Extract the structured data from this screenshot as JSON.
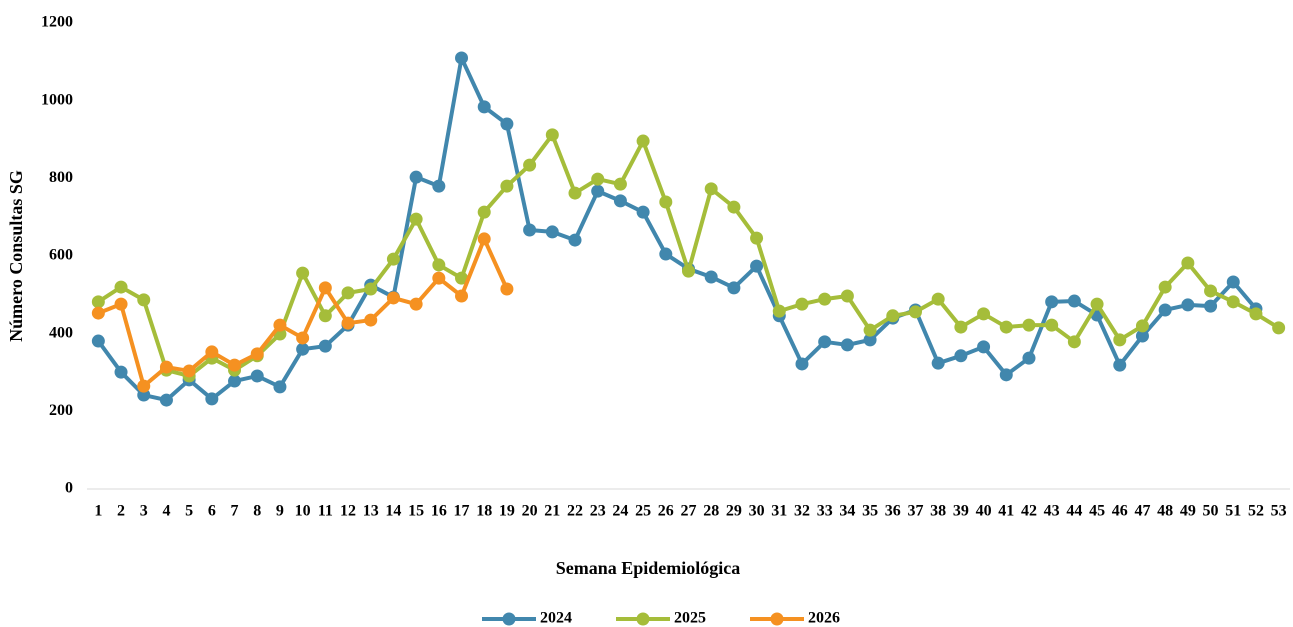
{
  "chart_data": {
    "type": "line",
    "x_label": "Semana Epidemiológica",
    "y_label": "Número Consultas SG",
    "categories": [
      "1",
      "2",
      "3",
      "4",
      "5",
      "6",
      "7",
      "8",
      "9",
      "10",
      "11",
      "12",
      "13",
      "14",
      "15",
      "16",
      "17",
      "18",
      "19",
      "20",
      "21",
      "22",
      "23",
      "24",
      "25",
      "26",
      "27",
      "28",
      "29",
      "30",
      "31",
      "32",
      "33",
      "34",
      "35",
      "36",
      "37",
      "38",
      "39",
      "40",
      "41",
      "42",
      "43",
      "44",
      "45",
      "46",
      "47",
      "48",
      "49",
      "50",
      "51",
      "52",
      "53"
    ],
    "ylim": [
      0,
      1200
    ],
    "yticks": [
      0,
      200,
      400,
      600,
      800,
      1000,
      1200
    ],
    "grid": false,
    "legend": "bottom",
    "series": [
      {
        "name": "2024",
        "color": "#4187ad",
        "values": [
          381,
          301,
          242,
          229,
          281,
          232,
          278,
          291,
          263,
          360,
          368,
          422,
          525,
          494,
          803,
          780,
          1110,
          984,
          940,
          667,
          662,
          641,
          767,
          742,
          713,
          605,
          567,
          546,
          518,
          574,
          446,
          322,
          379,
          371,
          384,
          440,
          461,
          324,
          343,
          366,
          294,
          337,
          482,
          484,
          448,
          319,
          394,
          461,
          474,
          471,
          533,
          464,
          null
        ]
      },
      {
        "name": "2025",
        "color": "#a5bd3a",
        "values": [
          482,
          520,
          487,
          306,
          291,
          337,
          306,
          343,
          399,
          556,
          446,
          505,
          515,
          592,
          695,
          577,
          543,
          713,
          780,
          834,
          912,
          762,
          798,
          785,
          896,
          739,
          561,
          773,
          726,
          646,
          458,
          476,
          489,
          497,
          409,
          446,
          456,
          489,
          417,
          451,
          417,
          422,
          422,
          379,
          476,
          384,
          420,
          520,
          582,
          510,
          482,
          451,
          415
        ]
      },
      {
        "name": "2026",
        "color": "#f59121",
        "values": [
          453,
          476,
          265,
          314,
          304,
          353,
          319,
          348,
          422,
          389,
          518,
          427,
          435,
          492,
          476,
          543,
          497,
          644,
          515,
          null,
          null,
          null,
          null,
          null,
          null,
          null,
          null,
          null,
          null,
          null,
          null,
          null,
          null,
          null,
          null,
          null,
          null,
          null,
          null,
          null,
          null,
          null,
          null,
          null,
          null,
          null,
          null,
          null,
          null,
          null,
          null,
          null,
          null
        ]
      }
    ]
  }
}
